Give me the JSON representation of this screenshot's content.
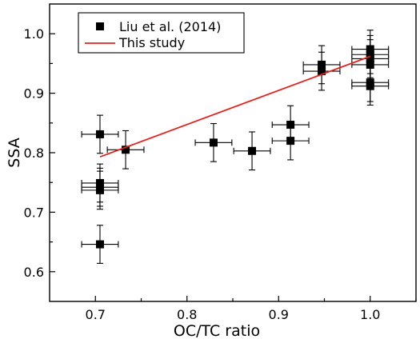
{
  "chart_data": {
    "type": "scatter",
    "xlabel": "OC/TC ratio",
    "ylabel": "SSA",
    "xlim": [
      0.65,
      1.05
    ],
    "ylim": [
      0.55,
      1.05
    ],
    "xticks": [
      0.7,
      0.8,
      0.9,
      1.0
    ],
    "yticks": [
      0.6,
      0.7,
      0.8,
      0.9,
      1.0
    ],
    "xtick_labels": [
      "0.7",
      "0.8",
      "0.9",
      "1.0"
    ],
    "ytick_labels": [
      "0.6",
      "0.7",
      "0.8",
      "0.9",
      "1.0"
    ],
    "legend": {
      "placement": "top-left"
    },
    "series": [
      {
        "name": "Liu et al. (2014)",
        "kind": "points",
        "marker": "square",
        "color": "#000000",
        "x_error": 0.02,
        "y_error": 0.032,
        "points": [
          {
            "x": 0.705,
            "y": 0.831
          },
          {
            "x": 0.705,
            "y": 0.749
          },
          {
            "x": 0.705,
            "y": 0.742
          },
          {
            "x": 0.705,
            "y": 0.737
          },
          {
            "x": 0.705,
            "y": 0.646
          },
          {
            "x": 0.733,
            "y": 0.805
          },
          {
            "x": 0.829,
            "y": 0.817
          },
          {
            "x": 0.871,
            "y": 0.803
          },
          {
            "x": 0.913,
            "y": 0.847
          },
          {
            "x": 0.913,
            "y": 0.82
          },
          {
            "x": 0.947,
            "y": 0.948
          },
          {
            "x": 0.947,
            "y": 0.937
          },
          {
            "x": 1.0,
            "y": 0.974
          },
          {
            "x": 1.0,
            "y": 0.965
          },
          {
            "x": 1.0,
            "y": 0.958
          },
          {
            "x": 1.0,
            "y": 0.948
          },
          {
            "x": 1.0,
            "y": 0.918
          },
          {
            "x": 1.0,
            "y": 0.912
          }
        ]
      },
      {
        "name": "This study",
        "kind": "line",
        "color": "#e8201c",
        "points": [
          {
            "x": 0.705,
            "y": 0.793
          },
          {
            "x": 1.0,
            "y": 0.962
          }
        ]
      }
    ]
  }
}
